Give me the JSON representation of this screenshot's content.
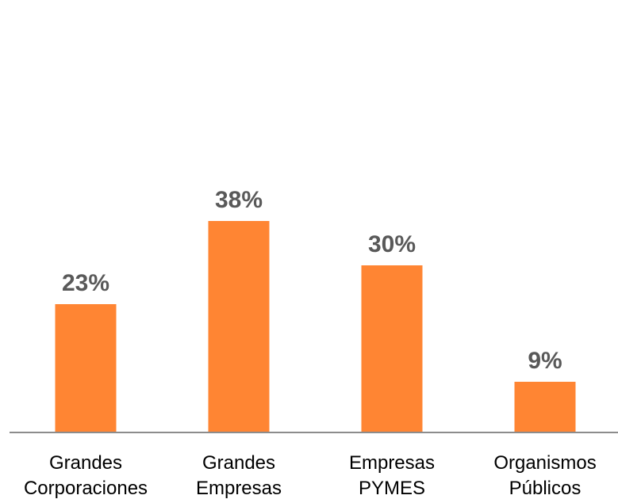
{
  "chart_data": {
    "type": "bar",
    "title": "",
    "xlabel": "",
    "ylabel": "",
    "categories": [
      [
        "Grandes",
        "Corporaciones"
      ],
      [
        "Grandes",
        "Empresas"
      ],
      [
        "Empresas",
        "PYMES"
      ],
      [
        "Organismos",
        "Públicos"
      ]
    ],
    "values": [
      23,
      38,
      30,
      9
    ],
    "data_labels": [
      "23%",
      "38%",
      "30%",
      "9%"
    ],
    "value_unit": "%",
    "ylim": [
      0,
      40
    ],
    "grid": false,
    "legend": "none",
    "colors": {
      "bar": "#FF8533",
      "axis": "#8C8C8C",
      "data_label": "#595959",
      "category_label": "#000000"
    }
  }
}
